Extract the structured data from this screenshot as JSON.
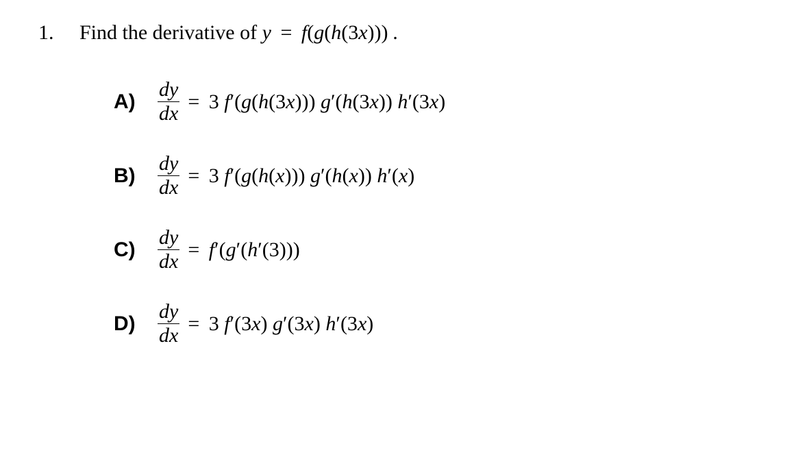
{
  "question": {
    "number": "1.",
    "prompt_prefix": "Find the derivative of  ",
    "prompt_expr_html": "<span class='math'>y <span class='eq'>=</span> f<span class='up'>(</span>g<span class='up'>(</span>h<span class='up'>(3</span>x<span class='up'>)))</span> .</span>",
    "dy": "dy",
    "dx": "dx"
  },
  "answers": [
    {
      "label": "A)",
      "expr_html": "<span class='eq'>=</span> <span class='up'>3</span> f<span class='prime'>&prime;</span><span class='up'>(</span>g<span class='up'>(</span>h<span class='up'>(3</span>x<span class='up'>)))</span> g<span class='prime'>&prime;</span><span class='up'>(</span>h<span class='up'>(3</span>x<span class='up'>))</span> h<span class='prime'>&prime;</span><span class='up'>(3</span>x<span class='up'>)</span>"
    },
    {
      "label": "B)",
      "expr_html": "<span class='eq'>=</span> <span class='up'>3</span> f<span class='prime'>&prime;</span><span class='up'>(</span>g<span class='up'>(</span>h<span class='up'>(</span>x<span class='up'>)))</span> g<span class='prime'>&prime;</span><span class='up'>(</span>h<span class='up'>(</span>x<span class='up'>))</span> h<span class='prime'>&prime;</span><span class='up'>(</span>x<span class='up'>)</span>"
    },
    {
      "label": "C)",
      "expr_html": "<span class='eq'>=</span> f<span class='prime'>&prime;</span><span class='up'>(</span>g<span class='prime'>&prime;</span><span class='up'>(</span>h<span class='prime'>&prime;</span><span class='up'>(3)))</span>"
    },
    {
      "label": "D)",
      "expr_html": "<span class='eq'>=</span> <span class='up'>3</span> f<span class='prime'>&prime;</span><span class='up'>(3</span>x<span class='up'>)</span> g<span class='prime'>&prime;</span><span class='up'>(3</span>x<span class='up'>)</span> h<span class='prime'>&prime;</span><span class='up'>(3</span>x<span class='up'>)</span>"
    }
  ],
  "style": {
    "font_family": "Times New Roman",
    "label_font_family": "Arial",
    "font_size_pt": 22,
    "text_color": "#000000",
    "background_color": "#ffffff"
  }
}
